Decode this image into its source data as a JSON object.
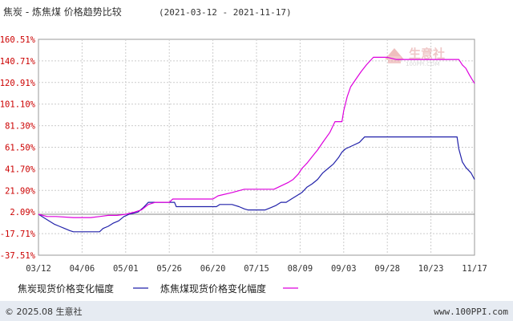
{
  "header": {
    "title": "焦炭 - 炼焦煤 价格趋势比较",
    "date_range": "(2021-03-12 - 2021-11-17)"
  },
  "watermark": {
    "brand": "生意社",
    "url": "100PPI.COM"
  },
  "footer": {
    "copyright": "© 2025.08 生意社",
    "url": "www.100PPI.com"
  },
  "colors": {
    "coke": "#2222aa",
    "coking_coal": "#dd00dd",
    "ytick": "#cc0000",
    "grid": "#cccccc",
    "background": "#ffffff",
    "footer_bar": "#dde4ee"
  },
  "chart_data": {
    "type": "line",
    "title": "焦炭 - 炼焦煤 价格趋势比较",
    "subtitle": "(2021-03-12 - 2021-11-17)",
    "xlabel": "",
    "ylabel": "",
    "x_ticks": [
      "03/12",
      "04/06",
      "05/01",
      "05/26",
      "06/20",
      "07/15",
      "08/09",
      "09/03",
      "09/28",
      "10/23",
      "11/17"
    ],
    "y_ticks": [
      "160.51%",
      "140.71%",
      "120.91%",
      "101.10%",
      "81.30%",
      "61.50%",
      "41.70%",
      "21.90%",
      "2.09%",
      "-17.71%",
      "-37.51%"
    ],
    "ylim": [
      -37.51,
      160.51
    ],
    "grid": true,
    "legend_position": "bottom-left",
    "series": [
      {
        "name": "焦炭现货价格变化幅度",
        "color": "#2222aa",
        "points": [
          [
            "03/12",
            0
          ],
          [
            "03/15",
            -3
          ],
          [
            "03/18",
            -6
          ],
          [
            "03/21",
            -9
          ],
          [
            "03/24",
            -11
          ],
          [
            "03/27",
            -13
          ],
          [
            "03/30",
            -15
          ],
          [
            "04/01",
            -16
          ],
          [
            "04/06",
            -16
          ],
          [
            "04/11",
            -16
          ],
          [
            "04/16",
            -16
          ],
          [
            "04/18",
            -13
          ],
          [
            "04/21",
            -11
          ],
          [
            "04/24",
            -8
          ],
          [
            "04/27",
            -6
          ],
          [
            "04/30",
            -2
          ],
          [
            "05/03",
            0
          ],
          [
            "05/08",
            2
          ],
          [
            "05/11",
            6
          ],
          [
            "05/14",
            11
          ],
          [
            "05/26",
            11
          ],
          [
            "05/29",
            11
          ],
          [
            "05/30",
            7
          ],
          [
            "06/10",
            7
          ],
          [
            "06/20",
            7
          ],
          [
            "06/22",
            7
          ],
          [
            "06/24",
            9
          ],
          [
            "07/01",
            9
          ],
          [
            "07/03",
            8
          ],
          [
            "07/05",
            7
          ],
          [
            "07/08",
            5
          ],
          [
            "07/10",
            4
          ],
          [
            "07/15",
            4
          ],
          [
            "07/20",
            4
          ],
          [
            "07/23",
            6
          ],
          [
            "07/26",
            8
          ],
          [
            "07/29",
            11
          ],
          [
            "08/01",
            11
          ],
          [
            "08/04",
            14
          ],
          [
            "08/07",
            17
          ],
          [
            "08/10",
            20
          ],
          [
            "08/13",
            25
          ],
          [
            "08/16",
            28
          ],
          [
            "08/19",
            32
          ],
          [
            "08/22",
            38
          ],
          [
            "08/25",
            42
          ],
          [
            "08/28",
            46
          ],
          [
            "08/31",
            52
          ],
          [
            "09/02",
            57
          ],
          [
            "09/04",
            60
          ],
          [
            "09/08",
            63
          ],
          [
            "09/12",
            66
          ],
          [
            "09/15",
            71
          ],
          [
            "09/20",
            71
          ],
          [
            "09/28",
            71
          ],
          [
            "10/23",
            71
          ],
          [
            "11/07",
            71
          ],
          [
            "11/08",
            60
          ],
          [
            "11/10",
            48
          ],
          [
            "11/12",
            43
          ],
          [
            "11/15",
            38
          ],
          [
            "11/17",
            32
          ]
        ]
      },
      {
        "name": "炼焦煤现货价格变化幅度",
        "color": "#dd00dd",
        "points": [
          [
            "03/12",
            0
          ],
          [
            "03/17",
            -2
          ],
          [
            "03/22",
            -2
          ],
          [
            "04/01",
            -3
          ],
          [
            "04/06",
            -3
          ],
          [
            "04/11",
            -3
          ],
          [
            "04/16",
            -2
          ],
          [
            "04/21",
            -1
          ],
          [
            "04/26",
            -1
          ],
          [
            "05/01",
            0
          ],
          [
            "05/06",
            2
          ],
          [
            "05/10",
            4
          ],
          [
            "05/14",
            9
          ],
          [
            "05/18",
            11
          ],
          [
            "05/26",
            11
          ],
          [
            "05/28",
            14
          ],
          [
            "06/10",
            14
          ],
          [
            "06/20",
            14
          ],
          [
            "06/23",
            17
          ],
          [
            "07/01",
            20
          ],
          [
            "07/08",
            23
          ],
          [
            "07/15",
            23
          ],
          [
            "07/25",
            23
          ],
          [
            "07/29",
            26
          ],
          [
            "08/02",
            29
          ],
          [
            "08/05",
            32
          ],
          [
            "08/08",
            37
          ],
          [
            "08/10",
            42
          ],
          [
            "08/13",
            47
          ],
          [
            "08/16",
            53
          ],
          [
            "08/19",
            59
          ],
          [
            "08/22",
            66
          ],
          [
            "08/26",
            75
          ],
          [
            "08/29",
            85
          ],
          [
            "09/02",
            85
          ],
          [
            "09/03",
            95
          ],
          [
            "09/05",
            108
          ],
          [
            "09/07",
            117
          ],
          [
            "09/10",
            124
          ],
          [
            "09/13",
            131
          ],
          [
            "09/16",
            137
          ],
          [
            "09/20",
            144
          ],
          [
            "09/28",
            144
          ],
          [
            "10/03",
            142
          ],
          [
            "10/10",
            142
          ],
          [
            "10/23",
            142
          ],
          [
            "11/08",
            142
          ],
          [
            "11/10",
            137
          ],
          [
            "11/12",
            134
          ],
          [
            "11/14",
            128
          ],
          [
            "11/17",
            120
          ]
        ]
      }
    ]
  }
}
